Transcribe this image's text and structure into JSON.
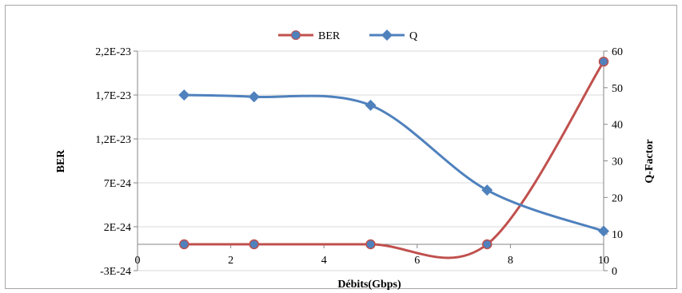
{
  "chart_data": {
    "type": "line",
    "x": [
      1,
      2.5,
      5,
      7.5,
      10
    ],
    "xlabel": "Débits(Gbps)",
    "xlim": [
      0,
      10
    ],
    "xticks": [
      0,
      2,
      4,
      6,
      8,
      10
    ],
    "ylabel": "BER",
    "ylim": [
      -3e-24,
      2.2e-23
    ],
    "yticks": [
      "-3E-24",
      "2E-24",
      "7E-24",
      "1,2E-23",
      "1,7E-23",
      "2,2E-23"
    ],
    "y2label": "Q-Factor",
    "y2lim": [
      0,
      60
    ],
    "y2ticks": [
      0,
      10,
      20,
      30,
      40,
      50,
      60
    ],
    "legend_position": "top",
    "series": [
      {
        "name": "BER",
        "axis": "left",
        "color": "#c0504d",
        "marker": "circle",
        "values": [
          0,
          0,
          0,
          0,
          2.08e-23
        ]
      },
      {
        "name": "Q",
        "axis": "right",
        "color": "#4f81bd",
        "marker": "diamond",
        "values": [
          48,
          47.5,
          45.2,
          22,
          10.8
        ]
      }
    ]
  }
}
